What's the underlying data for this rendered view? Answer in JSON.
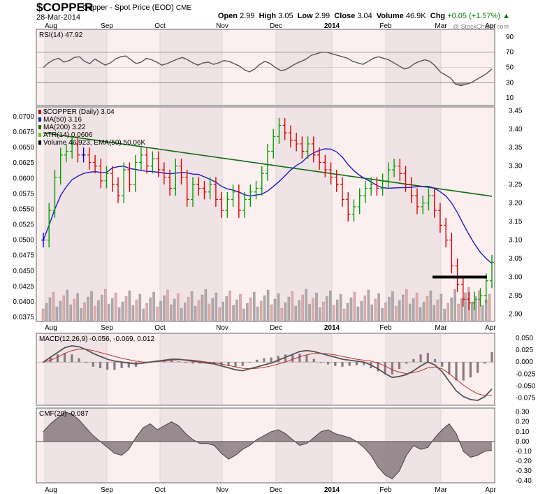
{
  "header": {
    "symbol": "$COPPER",
    "name": "Copper - Spot Price (EOD)",
    "exchange": "CME",
    "date": "28-Mar-2014",
    "open_label": "Open",
    "open": "2.99",
    "high_label": "High",
    "high": "3.05",
    "low_label": "Low",
    "low": "2.99",
    "close_label": "Close",
    "close": "3.04",
    "volume_label": "Volume",
    "volume": "46.9K",
    "chg_label": "Chg",
    "chg": "+0.05 (+1.57%)",
    "watermark": "@ StockCharts.com"
  },
  "colors": {
    "up": "#00a000",
    "down": "#e00000",
    "neutral": "#0000d0",
    "ma50": "#1c1cc8",
    "ma200": "#107010",
    "atr": "#66cc00",
    "macd": "#555555",
    "signal": "#c03030",
    "panel_bg": "#fbeff0",
    "shade": "#e8d8dc"
  },
  "chart_data": [
    {
      "type": "line",
      "panel": "rsi",
      "legend": "RSI(14) 47.92",
      "y_ticks": [
        90,
        70,
        50,
        30,
        10
      ],
      "ylim": [
        0,
        100
      ],
      "x_labels": [
        "Aug",
        "Sep",
        "Oct",
        "Nov",
        "Dec",
        "2014",
        "Feb",
        "Mar",
        "Apr"
      ],
      "values": [
        50,
        56,
        60,
        62,
        57,
        59,
        63,
        64,
        58,
        55,
        61,
        57,
        53,
        56,
        61,
        64,
        65,
        60,
        55,
        57,
        62,
        60,
        57,
        53,
        55,
        58,
        61,
        63,
        60,
        56,
        53,
        56,
        57,
        54,
        56,
        59,
        58,
        55,
        52,
        47,
        44,
        48,
        54,
        58,
        55,
        50,
        46,
        47,
        51,
        55,
        58,
        61,
        66,
        68,
        70,
        70,
        68,
        66,
        64,
        62,
        58,
        56,
        54,
        58,
        62,
        64,
        62,
        60,
        56,
        52,
        48,
        50,
        55,
        58,
        60,
        58,
        52,
        44,
        40,
        36,
        28,
        26,
        28,
        30,
        34,
        38,
        42,
        48
      ]
    },
    {
      "type": "ohlc",
      "panel": "price",
      "legend": [
        {
          "text": "$COPPER (Daily) 3.04",
          "color": "#cc0000"
        },
        {
          "text": "MA(50) 3.16",
          "color": "#1c1cc8"
        },
        {
          "text": "MA(200) 3.22",
          "color": "#107010"
        },
        {
          "text": "ATR(14) 0.0606",
          "color": "#66cc00"
        },
        {
          "text": "Volume 46,923, EMA(50) 50.06K",
          "color": "#000000"
        }
      ],
      "y_right_ticks": [
        3.45,
        3.4,
        3.35,
        3.3,
        3.25,
        3.2,
        3.15,
        3.1,
        3.05,
        3.0,
        2.95,
        2.9
      ],
      "y_left_ticks": [
        0.07,
        0.0675,
        0.065,
        0.0625,
        0.06,
        0.0575,
        0.055,
        0.0525,
        0.05,
        0.0475,
        0.045,
        0.0425,
        0.04,
        0.0375
      ],
      "ylim": [
        2.88,
        3.46
      ],
      "x_labels": [
        "Aug",
        "Sep",
        "Oct",
        "Nov",
        "Dec",
        "2014",
        "Feb",
        "Mar",
        "Apr"
      ],
      "close": [
        3.1,
        3.18,
        3.27,
        3.33,
        3.34,
        3.36,
        3.33,
        3.33,
        3.31,
        3.3,
        3.26,
        3.28,
        3.25,
        3.22,
        3.29,
        3.25,
        3.31,
        3.33,
        3.3,
        3.32,
        3.29,
        3.27,
        3.24,
        3.3,
        3.27,
        3.21,
        3.25,
        3.24,
        3.23,
        3.25,
        3.21,
        3.18,
        3.21,
        3.23,
        3.18,
        3.21,
        3.23,
        3.24,
        3.28,
        3.34,
        3.38,
        3.41,
        3.39,
        3.37,
        3.36,
        3.34,
        3.36,
        3.33,
        3.31,
        3.29,
        3.27,
        3.25,
        3.21,
        3.17,
        3.19,
        3.22,
        3.24,
        3.25,
        3.24,
        3.26,
        3.29,
        3.3,
        3.28,
        3.25,
        3.22,
        3.19,
        3.2,
        3.22,
        3.18,
        3.14,
        3.1,
        3.03,
        2.98,
        2.94,
        2.93,
        2.94,
        2.95,
        2.99,
        3.04
      ],
      "volume_ticks_note": "",
      "black_hline_value": 3.0
    },
    {
      "type": "line",
      "panel": "macd",
      "legend": "MACD(12,26,9) -0.056, -0.069, 0.012",
      "y_ticks": [
        0.05,
        0.025,
        0.0,
        -0.025,
        -0.05,
        -0.075
      ],
      "ylim": [
        -0.09,
        0.06
      ],
      "macd": [
        0.0,
        0.01,
        0.02,
        0.03,
        0.034,
        0.032,
        0.026,
        0.018,
        0.012,
        0.006,
        0.002,
        0.0,
        -0.002,
        -0.004,
        -0.002,
        0.0,
        0.002,
        0.004,
        0.006,
        0.006,
        0.004,
        0.002,
        0.0,
        -0.002,
        -0.004,
        -0.008,
        -0.012,
        -0.016,
        -0.018,
        -0.014,
        -0.01,
        -0.006,
        -0.002,
        0.004,
        0.01,
        0.016,
        0.022,
        0.024,
        0.022,
        0.018,
        0.014,
        0.01,
        0.006,
        0.004,
        0.002,
        0.0,
        -0.006,
        -0.014,
        -0.024,
        -0.032,
        -0.03,
        -0.026,
        -0.018,
        -0.008,
        0.0,
        -0.006,
        -0.02,
        -0.04,
        -0.06,
        -0.072,
        -0.078,
        -0.08,
        -0.072,
        -0.056
      ],
      "signal": [
        0.0,
        0.004,
        0.01,
        0.018,
        0.024,
        0.027,
        0.027,
        0.024,
        0.02,
        0.016,
        0.012,
        0.008,
        0.005,
        0.002,
        0.0,
        0.0,
        0.001,
        0.002,
        0.004,
        0.005,
        0.005,
        0.004,
        0.002,
        0.0,
        -0.002,
        -0.004,
        -0.007,
        -0.01,
        -0.013,
        -0.014,
        -0.013,
        -0.011,
        -0.008,
        -0.004,
        0.0,
        0.006,
        0.011,
        0.015,
        0.018,
        0.018,
        0.017,
        0.015,
        0.012,
        0.009,
        0.006,
        0.004,
        0.002,
        -0.002,
        -0.008,
        -0.016,
        -0.021,
        -0.024,
        -0.022,
        -0.018,
        -0.012,
        -0.01,
        -0.014,
        -0.024,
        -0.036,
        -0.048,
        -0.058,
        -0.066,
        -0.07,
        -0.069
      ]
    },
    {
      "type": "area",
      "panel": "cmf",
      "legend": "CMF(20) -0.087",
      "y_ticks": [
        0.3,
        0.2,
        0.1,
        0.0,
        -0.1,
        -0.2,
        -0.3,
        -0.4
      ],
      "ylim": [
        -0.42,
        0.34
      ],
      "values": [
        0.1,
        0.18,
        0.24,
        0.3,
        0.28,
        0.22,
        0.14,
        0.06,
        0.0,
        -0.06,
        -0.12,
        -0.14,
        -0.08,
        0.04,
        0.14,
        0.18,
        0.12,
        0.16,
        0.2,
        0.16,
        0.08,
        0.02,
        -0.02,
        -0.02,
        -0.04,
        -0.12,
        -0.18,
        -0.14,
        -0.08,
        -0.04,
        0.02,
        0.06,
        0.1,
        0.12,
        0.08,
        0.02,
        -0.04,
        -0.02,
        0.04,
        0.1,
        0.12,
        0.08,
        0.06,
        0.04,
        0.0,
        -0.06,
        -0.14,
        -0.26,
        -0.34,
        -0.38,
        -0.3,
        -0.14,
        -0.04,
        -0.08,
        -0.06,
        0.04,
        0.12,
        0.18,
        0.08,
        -0.1,
        -0.16,
        -0.14,
        -0.1,
        -0.09
      ]
    }
  ]
}
